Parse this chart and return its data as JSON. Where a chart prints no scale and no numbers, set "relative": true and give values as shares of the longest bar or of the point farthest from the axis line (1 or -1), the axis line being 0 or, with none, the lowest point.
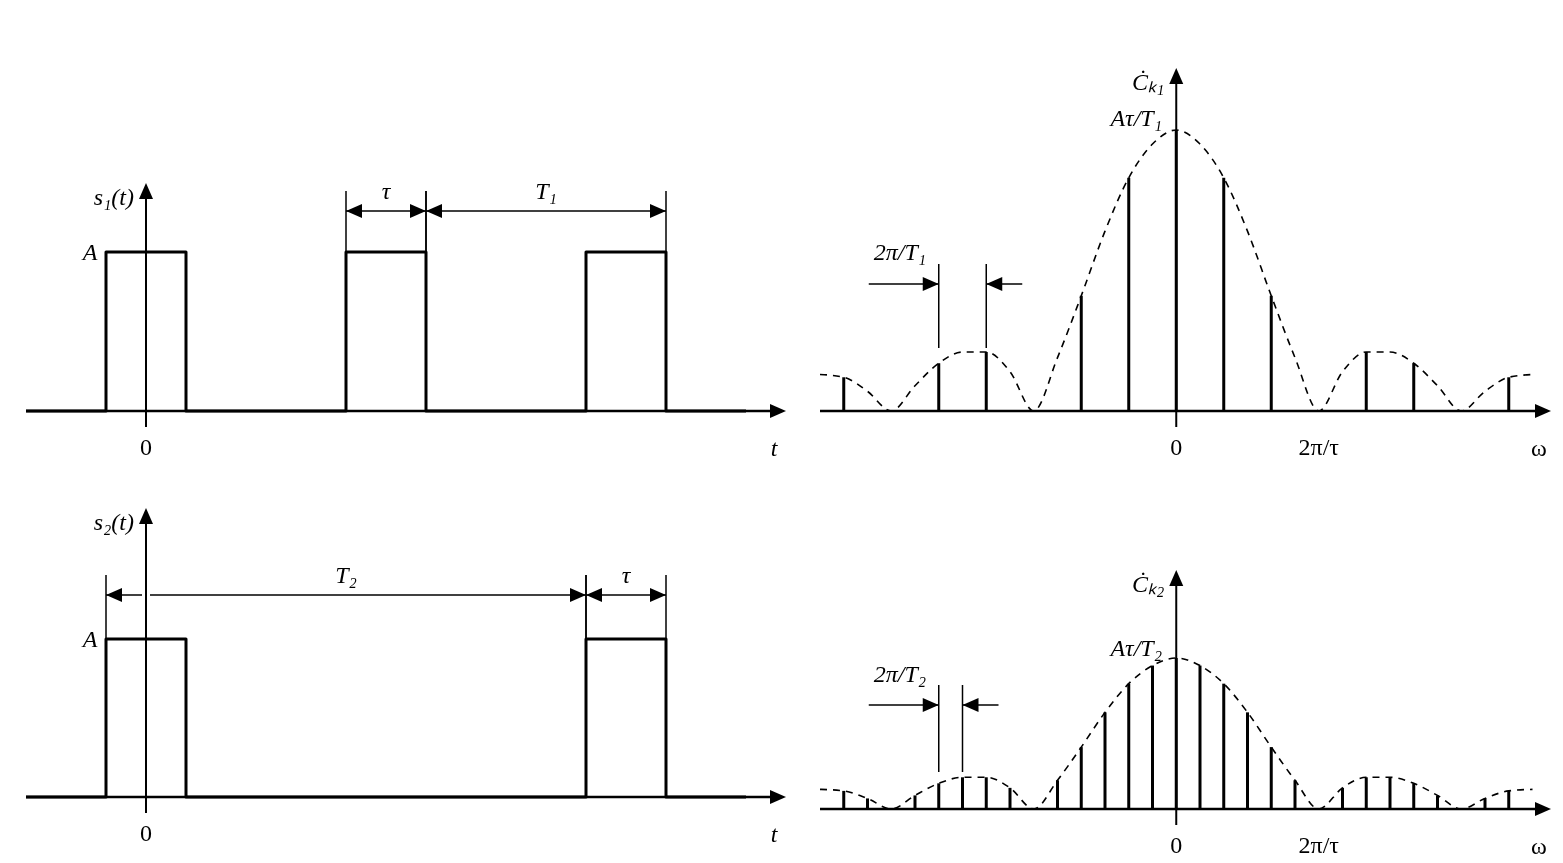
{
  "chart_data": [
    {
      "type": "step",
      "relative": true,
      "ylabel": "s₁(t)",
      "xlabel": "t",
      "categories": [
        null,
        null,
        null,
        null,
        null,
        null,
        null,
        null,
        null,
        null,
        null,
        null,
        null,
        null,
        null,
        null,
        null,
        null,
        null
      ],
      "series": [
        {
          "color": "#000000",
          "values": [
            0,
            0,
            1,
            1,
            0,
            0,
            0,
            0,
            1,
            1,
            0,
            0,
            0,
            0,
            1,
            1,
            0,
            0,
            0
          ]
        }
      ],
      "annotations": [
        "A",
        "0",
        "τ",
        "T₁"
      ]
    },
    {
      "type": "bar",
      "relative": true,
      "ylabel": "Ċₖ₁",
      "xlabel": "ω",
      "categories": [
        null,
        null,
        null,
        null,
        null,
        null,
        null,
        null,
        null,
        null,
        null,
        null,
        null,
        null,
        null,
        "0",
        null,
        null,
        null,
        null,
        null,
        "2π/τ",
        null,
        null,
        null,
        null,
        null,
        null,
        null,
        null,
        null
      ],
      "series": [
        {
          "color": "#000000",
          "values": [
            null,
            0.12,
            null,
            0,
            null,
            0.17,
            null,
            0.21,
            null,
            0,
            null,
            0.41,
            null,
            0.83,
            null,
            1,
            null,
            0.83,
            null,
            0.41,
            null,
            0,
            null,
            0.21,
            null,
            0.17,
            null,
            0,
            null,
            0.12,
            null
          ]
        },
        {
          "type": "line",
          "line_style": "dashed",
          "color": "#000000",
          "values": [
            0.13,
            0.12,
            0.07,
            0,
            0.09,
            0.17,
            0.21,
            0.21,
            0.14,
            0,
            0.19,
            0.41,
            0.64,
            0.83,
            0.95,
            1,
            0.95,
            0.83,
            0.64,
            0.41,
            0.19,
            0,
            0.14,
            0.21,
            0.21,
            0.17,
            0.09,
            0,
            0.07,
            0.12,
            0.13
          ]
        }
      ],
      "annotations": [
        "Aτ/T₁",
        "2π/T₁"
      ]
    },
    {
      "type": "step",
      "relative": true,
      "ylabel": "s₂(t)",
      "xlabel": "t",
      "categories": [
        null,
        null,
        null,
        null,
        null,
        null,
        null,
        null,
        null,
        null,
        null,
        null,
        null,
        null,
        null,
        null,
        null,
        null,
        null
      ],
      "series": [
        {
          "color": "#000000",
          "values": [
            0,
            0,
            1,
            1,
            0,
            0,
            0,
            0,
            0,
            0,
            0,
            0,
            0,
            0,
            1,
            1,
            0,
            0,
            0
          ]
        }
      ],
      "annotations": [
        "A",
        "0",
        "T₂",
        "τ"
      ]
    },
    {
      "type": "bar",
      "relative": true,
      "ylabel": "Ċₖ₂",
      "xlabel": "ω",
      "categories": [
        null,
        null,
        null,
        null,
        null,
        null,
        null,
        null,
        null,
        null,
        null,
        null,
        null,
        null,
        null,
        "0",
        null,
        null,
        null,
        null,
        null,
        "2π/τ",
        null,
        null,
        null,
        null,
        null,
        null,
        null,
        null,
        null
      ],
      "series": [
        {
          "color": "#000000",
          "values": [
            null,
            0.12,
            0.07,
            0,
            0.09,
            0.17,
            0.21,
            0.21,
            0.14,
            0,
            0.19,
            0.41,
            0.64,
            0.83,
            0.95,
            1,
            0.95,
            0.83,
            0.64,
            0.41,
            0.19,
            0,
            0.14,
            0.21,
            0.21,
            0.17,
            0.09,
            0,
            0.07,
            0.12,
            null
          ]
        },
        {
          "type": "line",
          "line_style": "dashed",
          "color": "#000000",
          "values": [
            0.13,
            0.12,
            0.07,
            0,
            0.09,
            0.17,
            0.21,
            0.21,
            0.14,
            0,
            0.19,
            0.41,
            0.64,
            0.83,
            0.95,
            1,
            0.95,
            0.83,
            0.64,
            0.41,
            0.19,
            0,
            0.14,
            0.21,
            0.21,
            0.17,
            0.09,
            0,
            0.07,
            0.12,
            0.13
          ]
        }
      ],
      "annotations": [
        "Aτ/T₂",
        "2π/T₂"
      ]
    }
  ]
}
